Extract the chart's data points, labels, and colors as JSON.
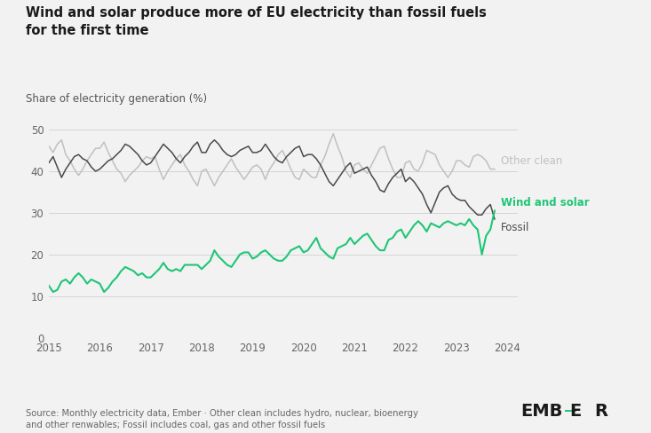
{
  "title_line1": "Wind and solar produce more of EU electricity than fossil fuels",
  "title_line2": "for the first time",
  "ylabel": "Share of electricity generation (%)",
  "ylim": [
    0,
    52
  ],
  "yticks": [
    0,
    10,
    20,
    30,
    40,
    50
  ],
  "xlim": [
    2015.0,
    2024.2
  ],
  "xticks": [
    2015,
    2016,
    2017,
    2018,
    2019,
    2020,
    2021,
    2022,
    2023,
    2024
  ],
  "source_text": "Source: Monthly electricity data, Ember · Other clean includes hydro, nuclear, bioenergy\nand other renwables; Fossil includes coal, gas and other fossil fuels",
  "color_wind_solar": "#1ec677",
  "color_fossil": "#4a4a4a",
  "color_other_clean": "#c0c0c0",
  "background_color": "#f2f2f2",
  "wind_solar": [
    12.5,
    11.0,
    11.5,
    13.5,
    14.0,
    13.0,
    14.5,
    15.5,
    14.5,
    13.0,
    14.0,
    13.5,
    13.0,
    11.0,
    12.0,
    13.5,
    14.5,
    16.0,
    17.0,
    16.5,
    16.0,
    15.0,
    15.5,
    14.5,
    14.5,
    15.5,
    16.5,
    18.0,
    16.5,
    16.0,
    16.5,
    16.0,
    17.5,
    17.5,
    17.5,
    17.5,
    16.5,
    17.5,
    18.5,
    21.0,
    19.5,
    18.5,
    17.5,
    17.0,
    18.5,
    20.0,
    20.5,
    20.5,
    19.0,
    19.5,
    20.5,
    21.0,
    20.0,
    19.0,
    18.5,
    18.5,
    19.5,
    21.0,
    21.5,
    22.0,
    20.5,
    21.0,
    22.5,
    24.0,
    21.5,
    20.5,
    19.5,
    19.0,
    21.5,
    22.0,
    22.5,
    24.0,
    22.5,
    23.5,
    24.5,
    25.0,
    23.5,
    22.0,
    21.0,
    21.0,
    23.5,
    24.0,
    25.5,
    26.0,
    24.0,
    25.5,
    27.0,
    28.0,
    27.0,
    25.5,
    27.5,
    27.0,
    26.5,
    27.5,
    28.0,
    27.5,
    27.0,
    27.5,
    27.0,
    28.5,
    27.0,
    26.0,
    20.0,
    24.5,
    26.0,
    30.5
  ],
  "fossil": [
    42.0,
    43.5,
    41.0,
    38.5,
    40.5,
    42.0,
    43.5,
    44.0,
    43.0,
    42.5,
    41.0,
    40.0,
    40.5,
    41.5,
    42.5,
    43.0,
    44.0,
    45.0,
    46.5,
    46.0,
    45.0,
    44.0,
    42.5,
    41.5,
    42.0,
    43.5,
    45.0,
    46.5,
    45.5,
    44.5,
    43.0,
    42.0,
    43.5,
    44.5,
    46.0,
    47.0,
    44.5,
    44.5,
    46.5,
    47.5,
    46.5,
    45.0,
    44.0,
    43.5,
    44.0,
    45.0,
    45.5,
    46.0,
    44.5,
    44.5,
    45.0,
    46.5,
    45.0,
    43.5,
    42.5,
    42.0,
    43.5,
    44.5,
    45.5,
    46.0,
    43.5,
    44.0,
    44.0,
    43.0,
    41.5,
    39.5,
    37.5,
    36.5,
    38.0,
    39.5,
    41.0,
    42.0,
    39.5,
    40.0,
    40.5,
    41.0,
    39.0,
    37.5,
    35.5,
    35.0,
    37.0,
    38.5,
    39.5,
    40.5,
    37.5,
    38.5,
    37.5,
    36.0,
    34.5,
    32.0,
    30.0,
    32.5,
    35.0,
    36.0,
    36.5,
    34.5,
    33.5,
    33.0,
    33.0,
    31.5,
    30.5,
    29.5,
    29.5,
    31.0,
    32.0,
    28.5
  ],
  "other_clean": [
    46.0,
    44.5,
    46.5,
    47.5,
    44.0,
    42.5,
    40.5,
    39.0,
    40.5,
    42.5,
    44.0,
    45.5,
    45.5,
    47.0,
    44.5,
    42.5,
    40.5,
    39.5,
    37.5,
    39.0,
    40.0,
    41.0,
    42.5,
    43.5,
    43.0,
    43.5,
    40.5,
    38.0,
    40.0,
    41.5,
    43.0,
    44.0,
    41.5,
    40.0,
    38.0,
    36.5,
    40.0,
    40.5,
    38.5,
    36.5,
    38.5,
    40.0,
    41.5,
    43.0,
    41.0,
    39.5,
    38.0,
    39.5,
    41.0,
    41.5,
    40.5,
    38.0,
    40.5,
    42.0,
    44.0,
    45.0,
    43.0,
    40.5,
    38.5,
    38.0,
    40.5,
    39.5,
    38.5,
    38.5,
    41.5,
    43.5,
    46.5,
    49.0,
    46.0,
    43.5,
    40.0,
    38.5,
    41.5,
    42.0,
    40.5,
    39.5,
    41.5,
    43.5,
    45.5,
    46.0,
    43.0,
    40.5,
    38.5,
    38.5,
    42.0,
    42.5,
    40.5,
    40.0,
    42.0,
    45.0,
    44.5,
    44.0,
    41.5,
    40.0,
    38.5,
    40.0,
    42.5,
    42.5,
    41.5,
    41.0,
    43.5,
    44.0,
    43.5,
    42.5,
    40.5,
    40.5
  ]
}
